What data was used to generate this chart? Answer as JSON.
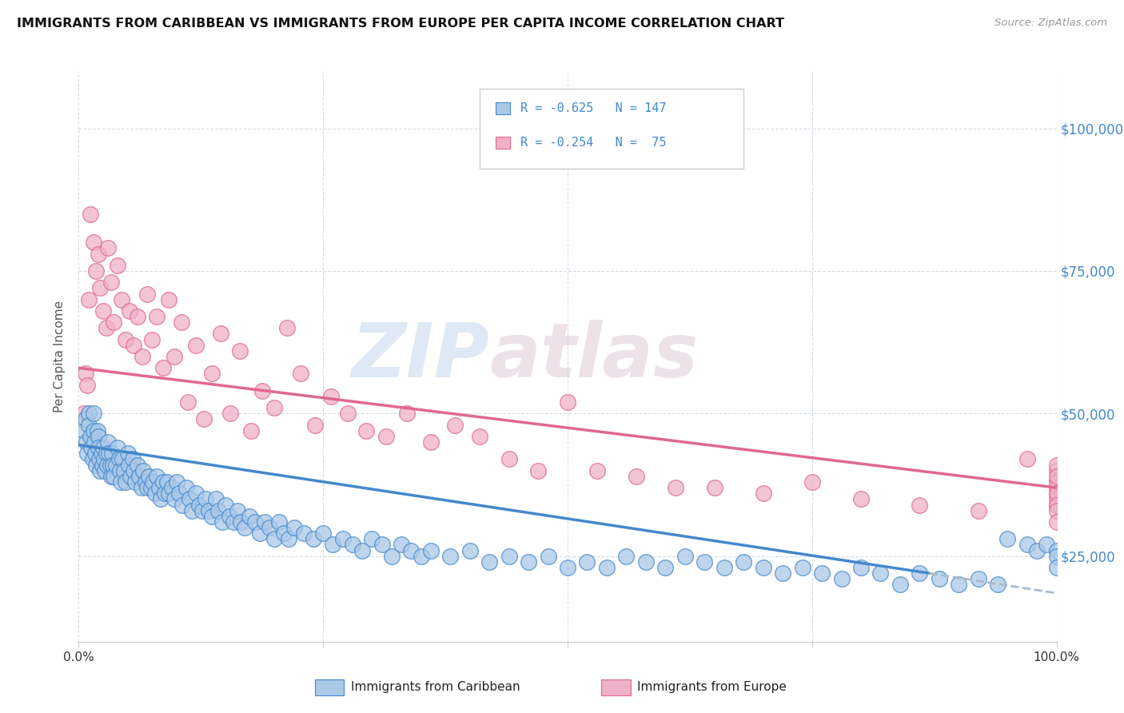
{
  "title": "IMMIGRANTS FROM CARIBBEAN VS IMMIGRANTS FROM EUROPE PER CAPITA INCOME CORRELATION CHART",
  "source": "Source: ZipAtlas.com",
  "ylabel": "Per Capita Income",
  "yticks": [
    25000,
    50000,
    75000,
    100000
  ],
  "ytick_labels": [
    "$25,000",
    "$50,000",
    "$75,000",
    "$100,000"
  ],
  "xlim": [
    0,
    1.0
  ],
  "ylim": [
    10000,
    110000
  ],
  "legend_r1": "R = -0.625",
  "legend_n1": "N = 147",
  "legend_r2": "R = -0.254",
  "legend_n2": "N =  75",
  "color_caribbean": "#aac8e8",
  "color_europe": "#f0b0c8",
  "line_color_caribbean": "#4488cc",
  "line_color_europe": "#e06890",
  "line_color_dashed": "#aabbcc",
  "label_caribbean": "Immigrants from Caribbean",
  "label_europe": "Immigrants from Europe",
  "watermark_zip": "ZIP",
  "watermark_atlas": "atlas",
  "caribbean_trend_x0": 0.0,
  "caribbean_trend_y0": 44500,
  "caribbean_trend_x1": 0.87,
  "caribbean_trend_y1": 22000,
  "dashed_trend_x0": 0.87,
  "dashed_trend_y0": 22000,
  "dashed_trend_x1": 1.0,
  "dashed_trend_y1": 18500,
  "europe_trend_x0": 0.0,
  "europe_trend_y0": 58000,
  "europe_trend_x1": 1.0,
  "europe_trend_y1": 37000,
  "caribbean_x": [
    0.005,
    0.007,
    0.008,
    0.009,
    0.01,
    0.01,
    0.012,
    0.013,
    0.014,
    0.015,
    0.015,
    0.016,
    0.017,
    0.018,
    0.019,
    0.02,
    0.02,
    0.021,
    0.022,
    0.023,
    0.024,
    0.025,
    0.026,
    0.027,
    0.028,
    0.029,
    0.03,
    0.031,
    0.032,
    0.033,
    0.034,
    0.035,
    0.036,
    0.038,
    0.04,
    0.041,
    0.042,
    0.043,
    0.045,
    0.046,
    0.048,
    0.05,
    0.051,
    0.053,
    0.055,
    0.056,
    0.058,
    0.06,
    0.062,
    0.064,
    0.066,
    0.068,
    0.07,
    0.072,
    0.074,
    0.076,
    0.078,
    0.08,
    0.082,
    0.084,
    0.086,
    0.088,
    0.09,
    0.092,
    0.095,
    0.098,
    0.1,
    0.103,
    0.106,
    0.11,
    0.113,
    0.116,
    0.12,
    0.123,
    0.126,
    0.13,
    0.133,
    0.136,
    0.14,
    0.143,
    0.147,
    0.15,
    0.154,
    0.158,
    0.162,
    0.166,
    0.17,
    0.175,
    0.18,
    0.185,
    0.19,
    0.195,
    0.2,
    0.205,
    0.21,
    0.215,
    0.22,
    0.23,
    0.24,
    0.25,
    0.26,
    0.27,
    0.28,
    0.29,
    0.3,
    0.31,
    0.32,
    0.33,
    0.34,
    0.35,
    0.36,
    0.38,
    0.4,
    0.42,
    0.44,
    0.46,
    0.48,
    0.5,
    0.52,
    0.54,
    0.56,
    0.58,
    0.6,
    0.62,
    0.64,
    0.66,
    0.68,
    0.7,
    0.72,
    0.74,
    0.76,
    0.78,
    0.8,
    0.82,
    0.84,
    0.86,
    0.88,
    0.9,
    0.92,
    0.94,
    0.95,
    0.97,
    0.98,
    0.99,
    1.0,
    1.0,
    1.0
  ],
  "caribbean_y": [
    47000,
    49000,
    45000,
    43000,
    50000,
    48000,
    46000,
    44000,
    42000,
    50000,
    47000,
    45000,
    43000,
    41000,
    47000,
    46000,
    44000,
    42000,
    40000,
    43000,
    41000,
    44000,
    42000,
    40000,
    43000,
    41000,
    45000,
    43000,
    41000,
    39000,
    43000,
    41000,
    39000,
    41000,
    44000,
    42000,
    40000,
    38000,
    42000,
    40000,
    38000,
    43000,
    41000,
    39000,
    42000,
    40000,
    38000,
    41000,
    39000,
    37000,
    40000,
    38000,
    37000,
    39000,
    37000,
    38000,
    36000,
    39000,
    37000,
    35000,
    38000,
    36000,
    38000,
    36000,
    37000,
    35000,
    38000,
    36000,
    34000,
    37000,
    35000,
    33000,
    36000,
    34000,
    33000,
    35000,
    33000,
    32000,
    35000,
    33000,
    31000,
    34000,
    32000,
    31000,
    33000,
    31000,
    30000,
    32000,
    31000,
    29000,
    31000,
    30000,
    28000,
    31000,
    29000,
    28000,
    30000,
    29000,
    28000,
    29000,
    27000,
    28000,
    27000,
    26000,
    28000,
    27000,
    25000,
    27000,
    26000,
    25000,
    26000,
    25000,
    26000,
    24000,
    25000,
    24000,
    25000,
    23000,
    24000,
    23000,
    25000,
    24000,
    23000,
    25000,
    24000,
    23000,
    24000,
    23000,
    22000,
    23000,
    22000,
    21000,
    23000,
    22000,
    20000,
    22000,
    21000,
    20000,
    21000,
    20000,
    28000,
    27000,
    26000,
    27000,
    26000,
    25000,
    23000
  ],
  "europe_x": [
    0.005,
    0.007,
    0.009,
    0.01,
    0.012,
    0.015,
    0.018,
    0.02,
    0.022,
    0.025,
    0.028,
    0.03,
    0.033,
    0.036,
    0.04,
    0.044,
    0.048,
    0.052,
    0.056,
    0.06,
    0.065,
    0.07,
    0.075,
    0.08,
    0.086,
    0.092,
    0.098,
    0.105,
    0.112,
    0.12,
    0.128,
    0.136,
    0.145,
    0.155,
    0.165,
    0.176,
    0.188,
    0.2,
    0.213,
    0.227,
    0.242,
    0.258,
    0.275,
    0.294,
    0.314,
    0.336,
    0.36,
    0.385,
    0.41,
    0.44,
    0.47,
    0.5,
    0.53,
    0.57,
    0.61,
    0.65,
    0.7,
    0.75,
    0.8,
    0.86,
    0.92,
    0.97,
    1.0,
    1.0,
    1.0,
    1.0,
    1.0,
    1.0,
    1.0,
    1.0,
    1.0,
    1.0,
    1.0,
    1.0,
    1.0
  ],
  "europe_y": [
    50000,
    57000,
    55000,
    70000,
    85000,
    80000,
    75000,
    78000,
    72000,
    68000,
    65000,
    79000,
    73000,
    66000,
    76000,
    70000,
    63000,
    68000,
    62000,
    67000,
    60000,
    71000,
    63000,
    67000,
    58000,
    70000,
    60000,
    66000,
    52000,
    62000,
    49000,
    57000,
    64000,
    50000,
    61000,
    47000,
    54000,
    51000,
    65000,
    57000,
    48000,
    53000,
    50000,
    47000,
    46000,
    50000,
    45000,
    48000,
    46000,
    42000,
    40000,
    52000,
    40000,
    39000,
    37000,
    37000,
    36000,
    38000,
    35000,
    34000,
    33000,
    42000,
    40000,
    38000,
    36000,
    37000,
    35000,
    34000,
    38000,
    36000,
    34000,
    33000,
    31000,
    41000,
    39000
  ]
}
